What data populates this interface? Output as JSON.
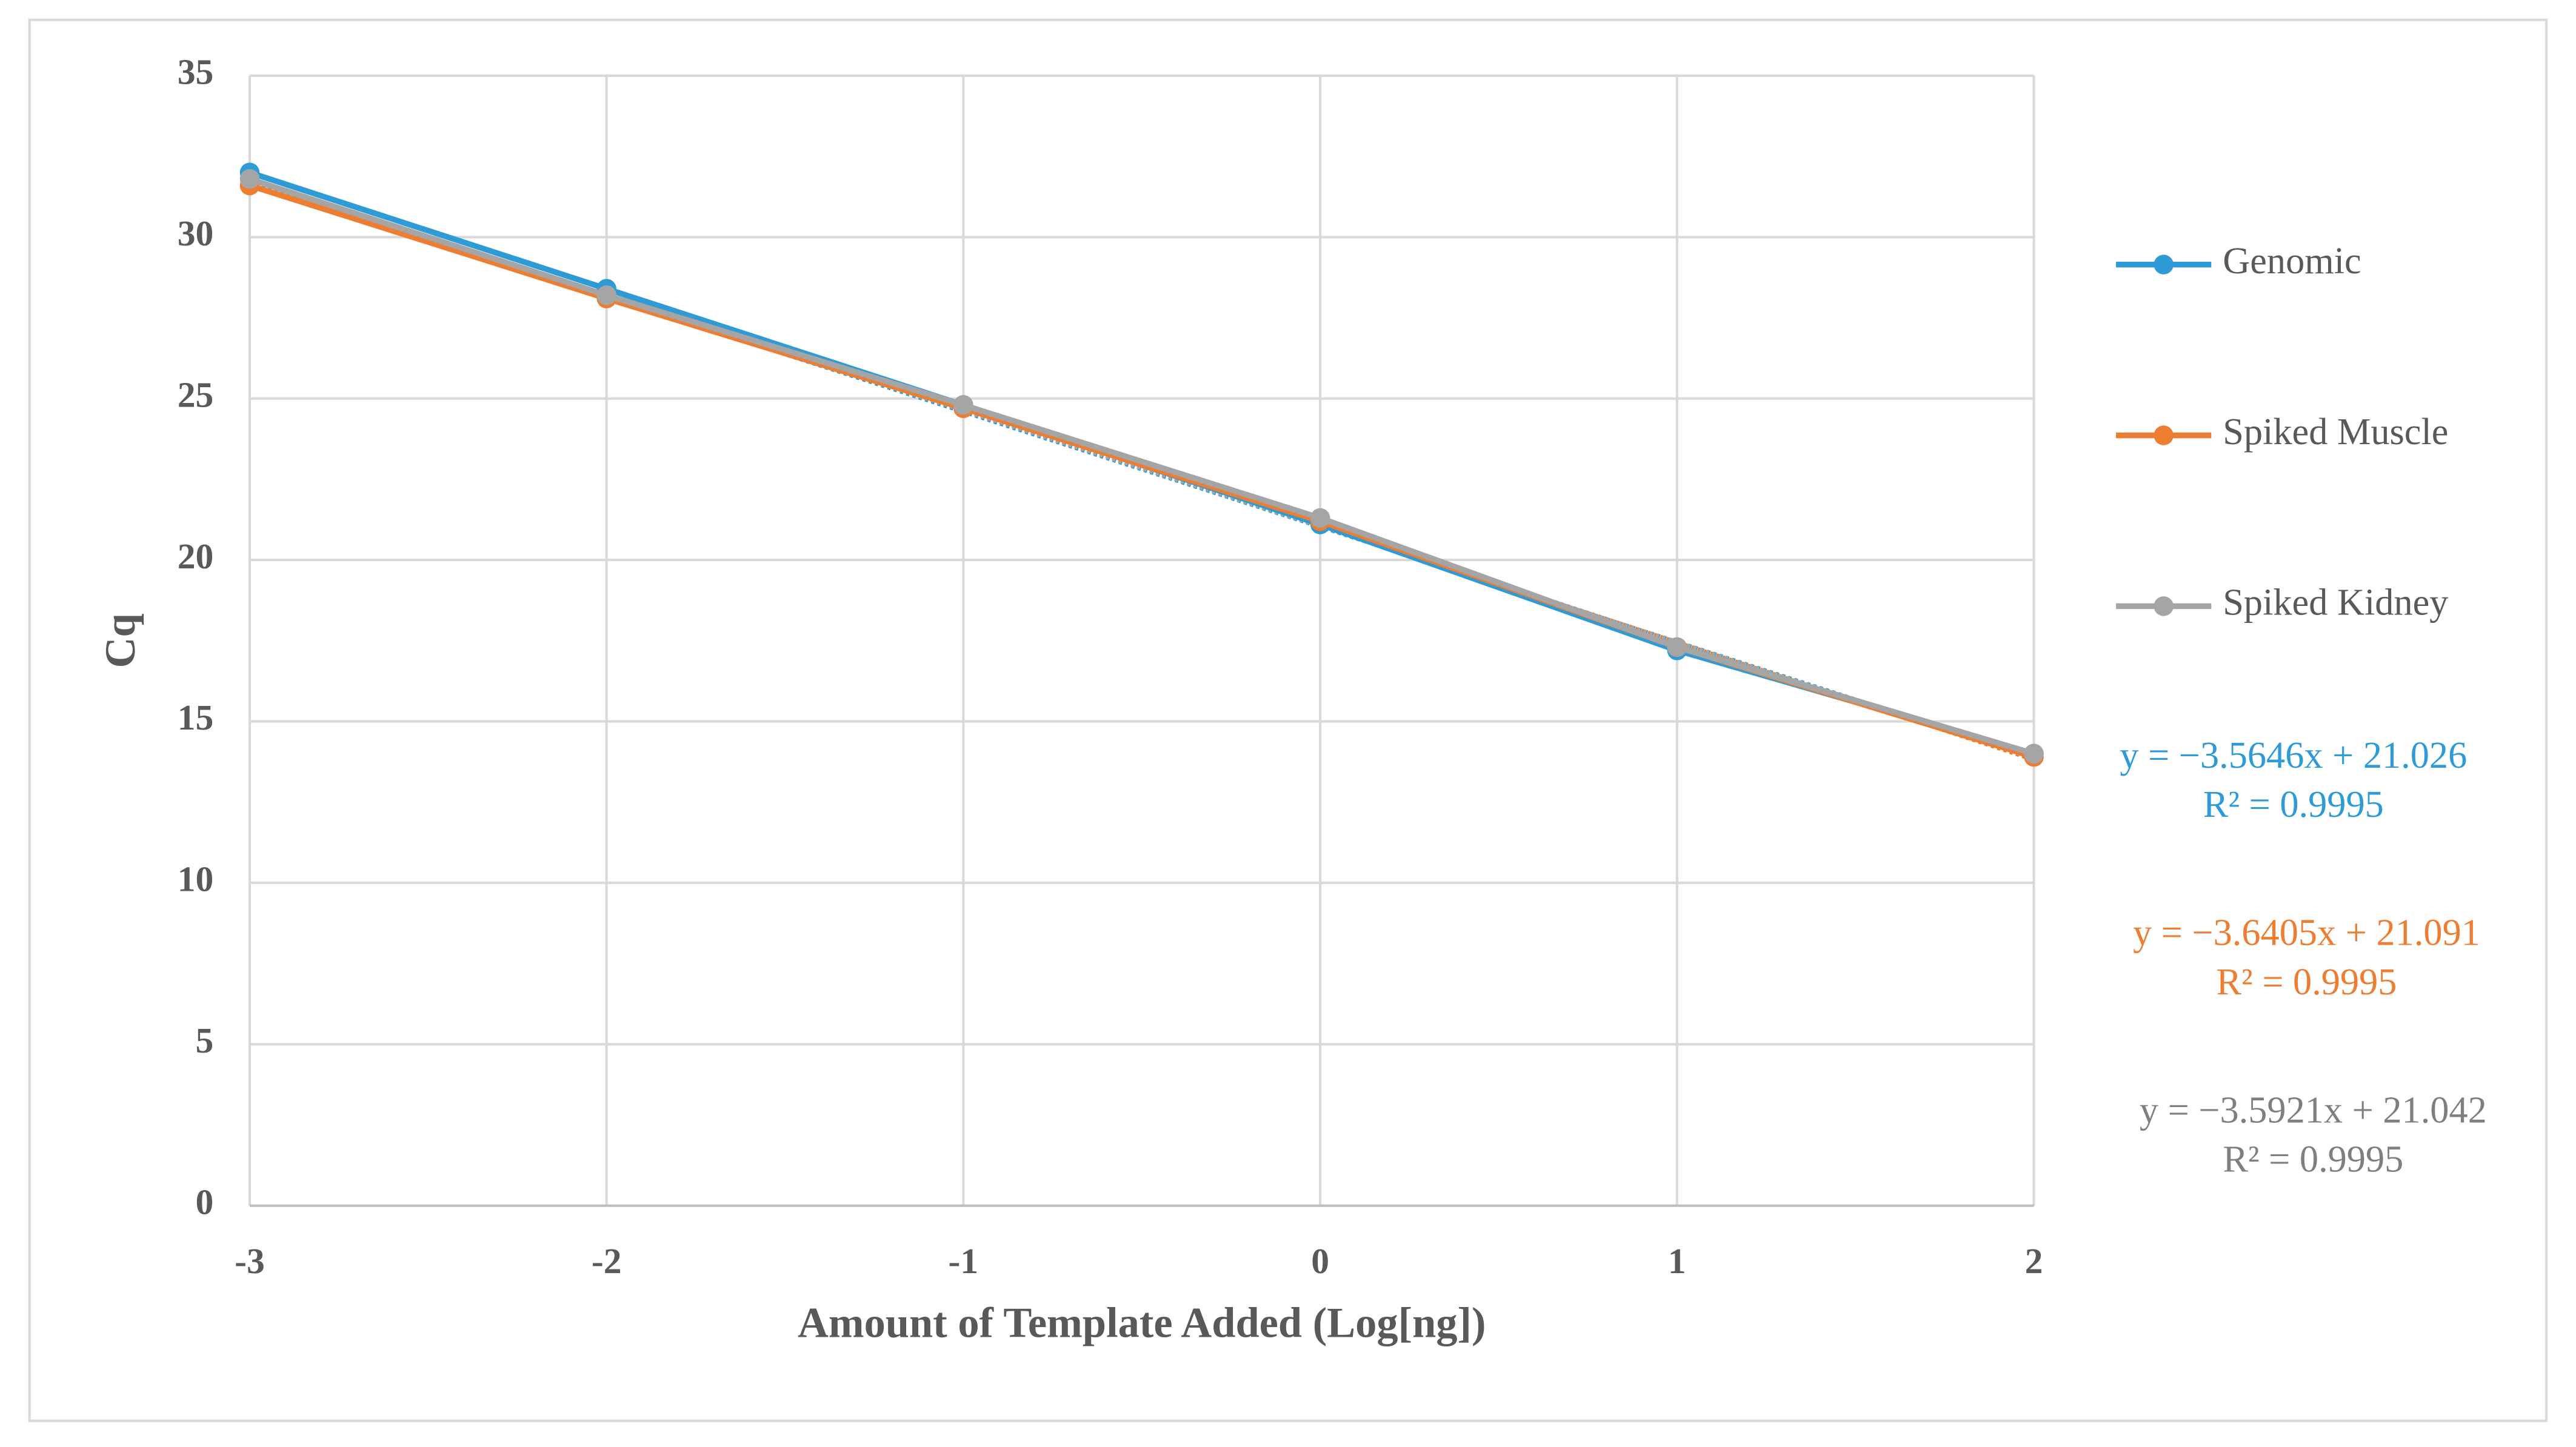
{
  "chart_data": {
    "type": "line",
    "x_label": "Amount of Template Added (Log[ng])",
    "y_label": "Cq",
    "x": [
      -3,
      -2,
      -1,
      0,
      1,
      2
    ],
    "xlim": [
      -3,
      2
    ],
    "xticks": [
      -3,
      -2,
      -1,
      0,
      1,
      2
    ],
    "ylim": [
      0,
      35
    ],
    "yticks": [
      0,
      5,
      10,
      15,
      20,
      25,
      30,
      35
    ],
    "grid": true,
    "legend": "right",
    "series": [
      {
        "name": "Genomic",
        "color": "#2e9bd6",
        "values": [
          32.0,
          28.4,
          24.8,
          21.1,
          17.2,
          14.0
        ],
        "trendline": {
          "slope": -3.5646,
          "intercept": 21.026,
          "equation": "y = −3.5646x + 21.026",
          "r2": 0.9995,
          "r2_label": "R² = 0.9995",
          "label_color": "#2e9bd6"
        }
      },
      {
        "name": "Spiked Muscle",
        "color": "#ed7d31",
        "values": [
          31.6,
          28.1,
          24.7,
          21.2,
          17.3,
          13.9
        ],
        "trendline": {
          "slope": -3.6405,
          "intercept": 21.091,
          "equation": "y = −3.6405x + 21.091",
          "r2": 0.9995,
          "r2_label": "R² = 0.9995",
          "label_color": "#ed7d31"
        }
      },
      {
        "name": "Spiked Kidney",
        "color": "#a5a5a5",
        "values": [
          31.8,
          28.2,
          24.8,
          21.3,
          17.3,
          14.0
        ],
        "trendline": {
          "slope": -3.5921,
          "intercept": 21.042,
          "equation": "y = −3.5921x + 21.042",
          "r2": 0.9995,
          "r2_label": "R² = 0.9995",
          "label_color": "#7f7f7f"
        }
      }
    ]
  }
}
